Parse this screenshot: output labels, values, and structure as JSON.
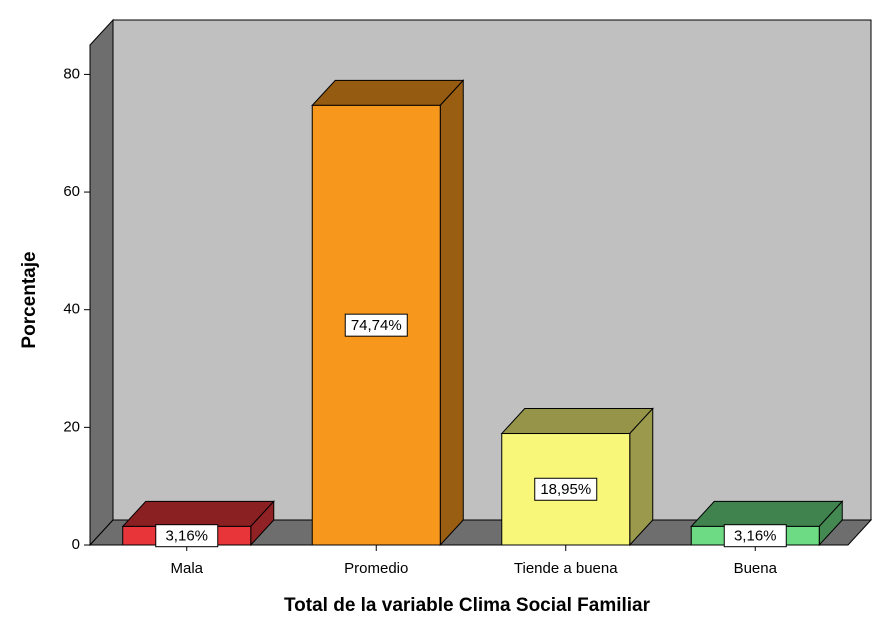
{
  "chart_data": {
    "type": "bar",
    "y_label": "Porcentaje",
    "x_label": "Total de la variable Clima Social Familiar",
    "categories": [
      "Mala",
      "Promedio",
      "Tiende a buena",
      "Buena"
    ],
    "values": [
      3.16,
      74.74,
      18.95,
      3.16
    ],
    "value_labels": [
      "3,16%",
      "74,74%",
      "18,95%",
      "3,16%"
    ],
    "colors": [
      "#e8353a",
      "#f7981d",
      "#f8f77a",
      "#6ddb84"
    ],
    "ylim": [
      0,
      85
    ],
    "yticks": [
      0,
      20,
      40,
      60,
      80
    ]
  }
}
